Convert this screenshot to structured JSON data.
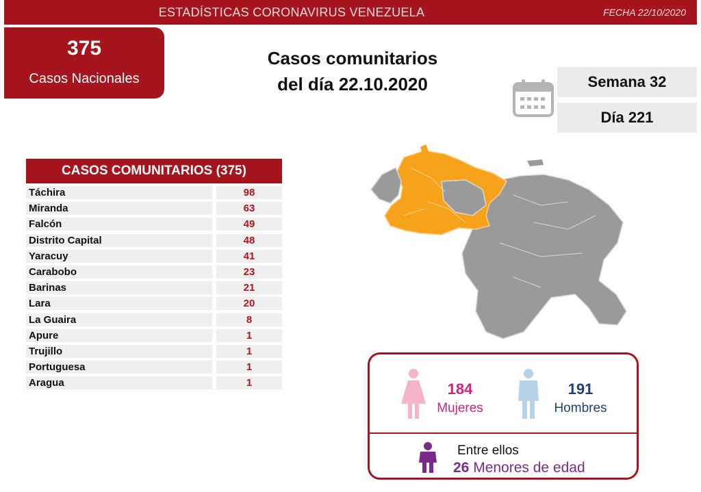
{
  "header": {
    "title": "ESTADÍSTICAS CORONAVIRUS VENEZUELA",
    "date": "FECHA 22/10/2020"
  },
  "national": {
    "count": "375",
    "label": "Casos Nacionales"
  },
  "main_title": {
    "line1": "Casos comunitarios",
    "line2": "del día 22.10.2020"
  },
  "calendar": {
    "icon": "calendar-icon",
    "week": "Semana 32",
    "day": "Día 221"
  },
  "table": {
    "header": "CASOS COMUNITARIOS (375)",
    "rows": [
      {
        "state": "Táchira",
        "value": "98"
      },
      {
        "state": "Miranda",
        "value": "63"
      },
      {
        "state": "Falcón",
        "value": "49"
      },
      {
        "state": "Distrito Capital",
        "value": "48"
      },
      {
        "state": "Yaracuy",
        "value": "41"
      },
      {
        "state": "Carabobo",
        "value": "23"
      },
      {
        "state": "Barinas",
        "value": "21"
      },
      {
        "state": "Lara",
        "value": "20"
      },
      {
        "state": "La Guaira",
        "value": "8"
      },
      {
        "state": "Apure",
        "value": "1"
      },
      {
        "state": "Trujillo",
        "value": "1"
      },
      {
        "state": "Portuguesa",
        "value": "1"
      },
      {
        "state": "Aragua",
        "value": "1"
      }
    ]
  },
  "map": {
    "icon": "venezuela-map",
    "highlight_color": "#f7a21b",
    "base_color": "#9a9a9a"
  },
  "gender": {
    "women_count": "184",
    "women_label": "Mujeres",
    "men_count": "191",
    "men_label": "Hombres",
    "among_label": "Entre ellos",
    "minors_count": "26",
    "minors_label": "Menores de edad",
    "colors": {
      "women": "#d4207e",
      "men": "#1f3f7a",
      "minors": "#7b2a8c",
      "frame": "#a6141d"
    }
  }
}
